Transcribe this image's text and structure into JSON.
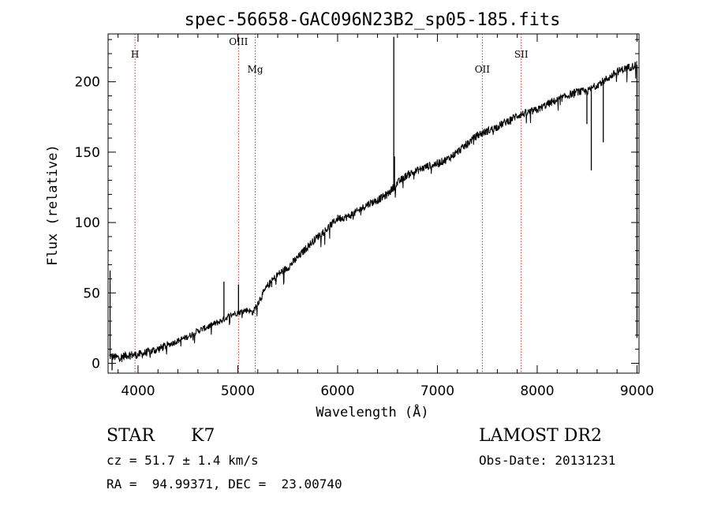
{
  "chart_data": {
    "type": "line",
    "title": "spec-56658-GAC096N23B2_sp05-185.fits",
    "xlabel": "Wavelength (Å)",
    "ylabel": "Flux (relative)",
    "xlim": [
      3700,
      9020
    ],
    "ylim": [
      -7,
      234
    ],
    "xticks": [
      4000,
      5000,
      6000,
      7000,
      8000,
      9000
    ],
    "yticks": [
      0,
      50,
      100,
      150,
      200
    ],
    "grid": false,
    "legend": "none",
    "line_markers": [
      {
        "label": "H",
        "wavelength": 3970
      },
      {
        "label": "OIII",
        "wavelength": 5007
      },
      {
        "label": "Mg",
        "wavelength": 5175
      },
      {
        "label": "OII",
        "wavelength": 7450
      },
      {
        "label": "SII",
        "wavelength": 7840
      }
    ],
    "series": [
      {
        "x": [
          3720,
          3800,
          3900,
          4000,
          4100,
          4200,
          4300,
          4400,
          4500,
          4600,
          4700,
          4800,
          4850,
          4900,
          4950,
          5000,
          5050,
          5100,
          5150,
          5200,
          5300,
          5400,
          5500,
          5600,
          5700,
          5800,
          5900,
          6000,
          6100,
          6200,
          6300,
          6400,
          6500,
          6560,
          6600,
          6700,
          6800,
          6900,
          7000,
          7100,
          7200,
          7300,
          7400,
          7500,
          7600,
          7700,
          7800,
          7900,
          8000,
          8100,
          8200,
          8300,
          8400,
          8500,
          8600,
          8700,
          8800,
          8900,
          9000
        ],
        "y": [
          5,
          4,
          6,
          6,
          8,
          10,
          13,
          16,
          19,
          23,
          26,
          29,
          31,
          33,
          35,
          36,
          37,
          38,
          36,
          43,
          55,
          63,
          68,
          75,
          83,
          90,
          96,
          103,
          104,
          108,
          113,
          116,
          120,
          125,
          128,
          134,
          137,
          140,
          142,
          145,
          150,
          156,
          162,
          165,
          168,
          172,
          176,
          178,
          180,
          184,
          187,
          190,
          193,
          193,
          198,
          202,
          207,
          210,
          212
        ],
        "features": [
          {
            "x": 3720,
            "y": 66
          },
          {
            "x": 3740,
            "y": -5
          },
          {
            "x": 4861,
            "y": 58
          },
          {
            "x": 5007,
            "y": 56
          },
          {
            "x": 6563,
            "y": 232
          },
          {
            "x": 6570,
            "y": 147
          },
          {
            "x": 8498,
            "y": 170
          },
          {
            "x": 8542,
            "y": 137
          },
          {
            "x": 8662,
            "y": 157
          },
          {
            "x": 9000,
            "y": 18
          }
        ]
      }
    ]
  },
  "info": {
    "class_label": "STAR",
    "subclass_label": "K7",
    "cz_text": "cz = 51.7 ± 1.4 km/s",
    "radec_text": "RA =  94.99371, DEC =  23.00740",
    "survey_label": "LAMOST DR2",
    "obsdate_text": "Obs-Date: 20131231"
  }
}
